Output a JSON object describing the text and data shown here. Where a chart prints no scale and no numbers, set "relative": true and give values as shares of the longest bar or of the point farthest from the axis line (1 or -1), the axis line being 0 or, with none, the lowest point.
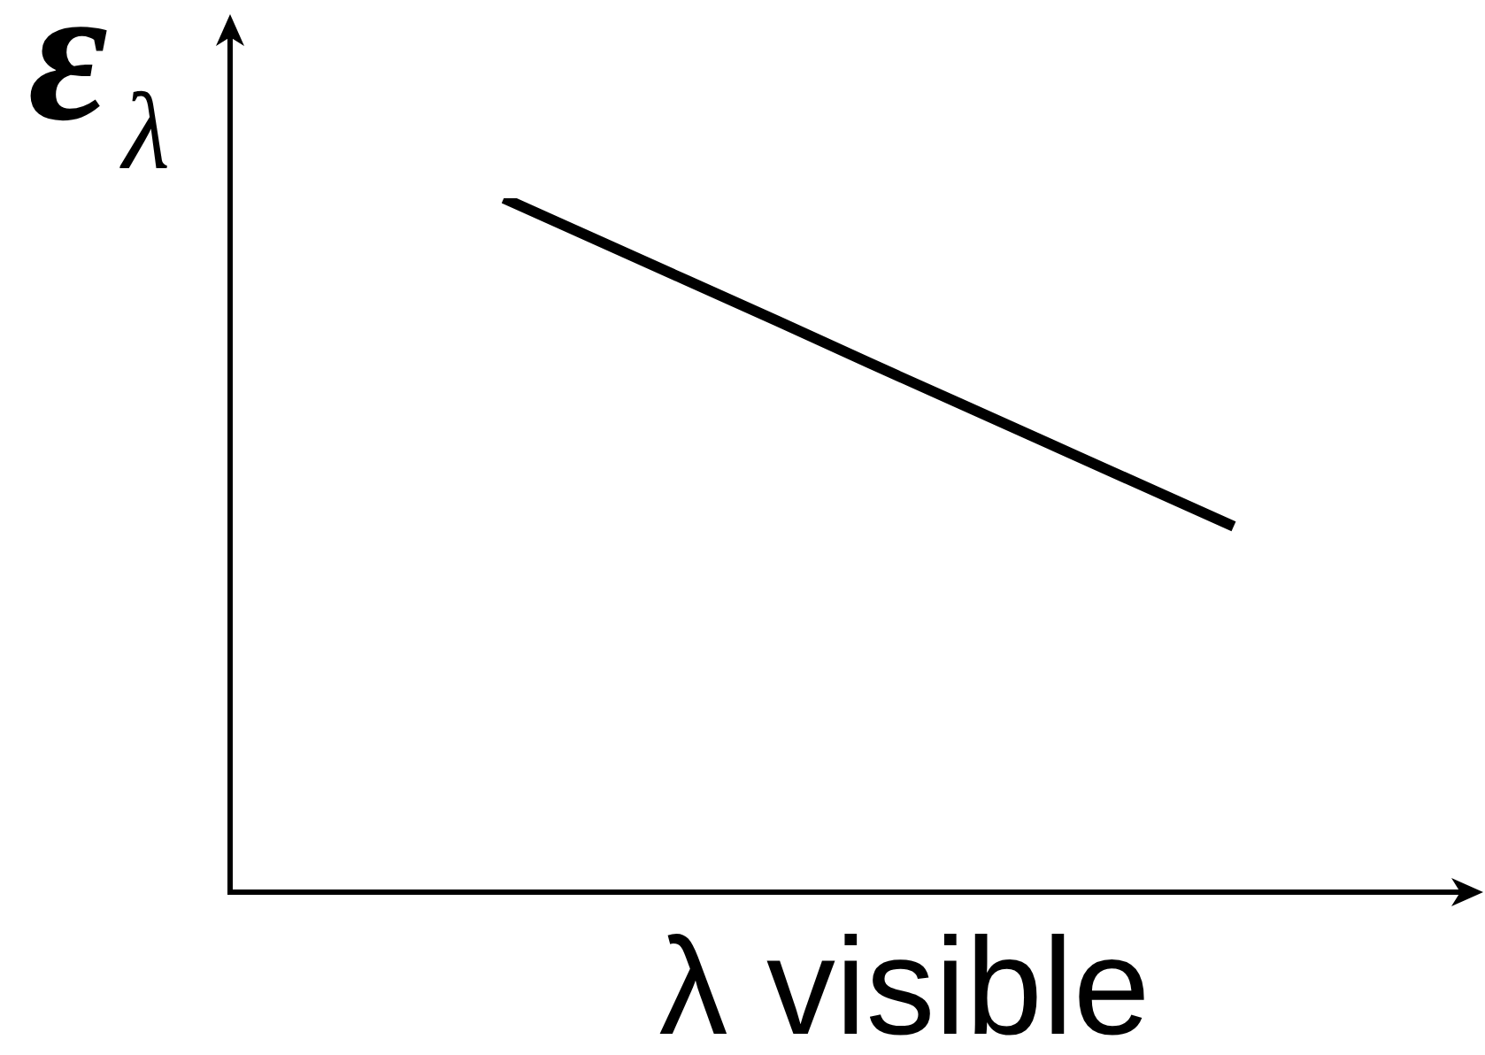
{
  "chart_data": {
    "type": "line",
    "relative": true,
    "xlabel": "λ visible",
    "ylabel": "ε$_{λ}$",
    "categories": [
      null,
      null,
      null,
      null,
      null,
      null,
      null,
      null,
      null,
      null,
      null,
      null
    ],
    "series": [
      {
        "color": "#000000",
        "values": [
          null,
          null,
          null,
          1,
          0.941,
          0.882,
          0.823,
          0.763,
          0.704,
          0.645,
          0.586,
          0.527
        ]
      }
    ]
  }
}
